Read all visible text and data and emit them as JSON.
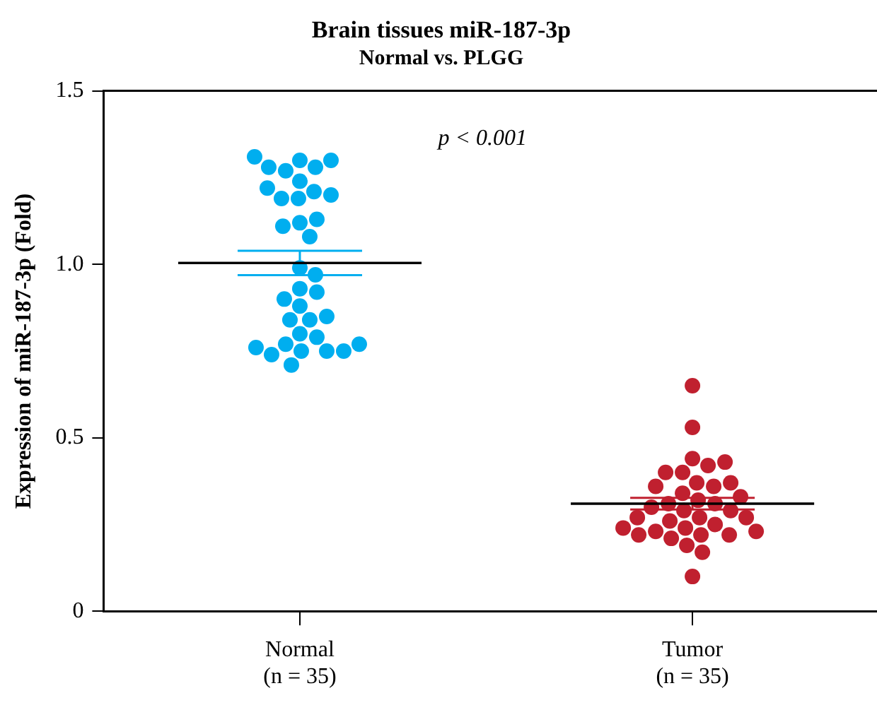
{
  "chart_data": {
    "type": "scatter",
    "title": "Brain tissues miR-187-3p",
    "subtitle": "Normal vs. PLGG",
    "ylabel": "Expression of miR-187-3p (Fold)",
    "categories": [
      "Normal\n(n = 35)",
      "Tumor\n(n = 35)"
    ],
    "ylim": [
      0,
      1.5
    ],
    "yticks": [
      0,
      0.5,
      {
        "value": 1,
        "label": "1.0"
      },
      1.5
    ],
    "legend": false,
    "marker": "circle",
    "annotations": [
      "p < 0.001"
    ],
    "series": [
      {
        "color": "#00aeef",
        "x": [
          "Normal\n(n = 35)",
          "Normal\n(n = 35)",
          "Normal\n(n = 35)",
          "Normal\n(n = 35)",
          "Normal\n(n = 35)",
          "Normal\n(n = 35)",
          "Normal\n(n = 35)",
          "Normal\n(n = 35)",
          "Normal\n(n = 35)",
          "Normal\n(n = 35)",
          "Normal\n(n = 35)",
          "Normal\n(n = 35)",
          "Normal\n(n = 35)",
          "Normal\n(n = 35)",
          "Normal\n(n = 35)",
          "Normal\n(n = 35)",
          "Normal\n(n = 35)",
          "Normal\n(n = 35)",
          "Normal\n(n = 35)",
          "Normal\n(n = 35)",
          "Normal\n(n = 35)",
          "Normal\n(n = 35)",
          "Normal\n(n = 35)",
          "Normal\n(n = 35)",
          "Normal\n(n = 35)",
          "Normal\n(n = 35)",
          "Normal\n(n = 35)",
          "Normal\n(n = 35)",
          "Normal\n(n = 35)",
          "Normal\n(n = 35)",
          "Normal\n(n = 35)",
          "Normal\n(n = 35)",
          "Normal\n(n = 35)",
          "Normal\n(n = 35)",
          "Normal\n(n = 35)"
        ],
        "values": [
          1.3,
          1.28,
          1.24,
          1.27,
          1.28,
          1.3,
          1.31,
          1.21,
          1.19,
          1.19,
          1.2,
          1.22,
          1.12,
          1.13,
          1.11,
          1.08,
          0.99,
          0.97,
          0.93,
          0.92,
          0.88,
          0.9,
          0.84,
          0.84,
          0.85,
          0.8,
          0.79,
          0.77,
          0.75,
          0.75,
          0.74,
          0.75,
          0.76,
          0.77,
          0.71
        ]
      },
      {
        "color": "#c0202f",
        "x": [
          "Tumor\n(n = 35)",
          "Tumor\n(n = 35)",
          "Tumor\n(n = 35)",
          "Tumor\n(n = 35)",
          "Tumor\n(n = 35)",
          "Tumor\n(n = 35)",
          "Tumor\n(n = 35)",
          "Tumor\n(n = 35)",
          "Tumor\n(n = 35)",
          "Tumor\n(n = 35)",
          "Tumor\n(n = 35)",
          "Tumor\n(n = 35)",
          "Tumor\n(n = 35)",
          "Tumor\n(n = 35)",
          "Tumor\n(n = 35)",
          "Tumor\n(n = 35)",
          "Tumor\n(n = 35)",
          "Tumor\n(n = 35)",
          "Tumor\n(n = 35)",
          "Tumor\n(n = 35)",
          "Tumor\n(n = 35)",
          "Tumor\n(n = 35)",
          "Tumor\n(n = 35)",
          "Tumor\n(n = 35)",
          "Tumor\n(n = 35)",
          "Tumor\n(n = 35)",
          "Tumor\n(n = 35)",
          "Tumor\n(n = 35)",
          "Tumor\n(n = 35)",
          "Tumor\n(n = 35)",
          "Tumor\n(n = 35)",
          "Tumor\n(n = 35)",
          "Tumor\n(n = 35)",
          "Tumor\n(n = 35)",
          "Tumor\n(n = 35)"
        ],
        "values": [
          0.65,
          0.53,
          0.44,
          0.42,
          0.4,
          0.4,
          0.43,
          0.37,
          0.36,
          0.36,
          0.37,
          0.34,
          0.32,
          0.33,
          0.31,
          0.31,
          0.3,
          0.29,
          0.29,
          0.27,
          0.27,
          0.26,
          0.27,
          0.25,
          0.24,
          0.23,
          0.22,
          0.22,
          0.23,
          0.24,
          0.22,
          0.21,
          0.19,
          0.17,
          0.1
        ]
      },
      {
        "type": "box",
        "color": "#000000",
        "boxes": [
          {
            "low": 0.969,
            "q1": 1.004,
            "median": 1.004,
            "q3": 1.004,
            "high": 1.039
          },
          {
            "low": 0.293,
            "q1": 0.31,
            "median": 0.31,
            "q3": 0.31,
            "high": 0.327
          }
        ]
      }
    ]
  }
}
